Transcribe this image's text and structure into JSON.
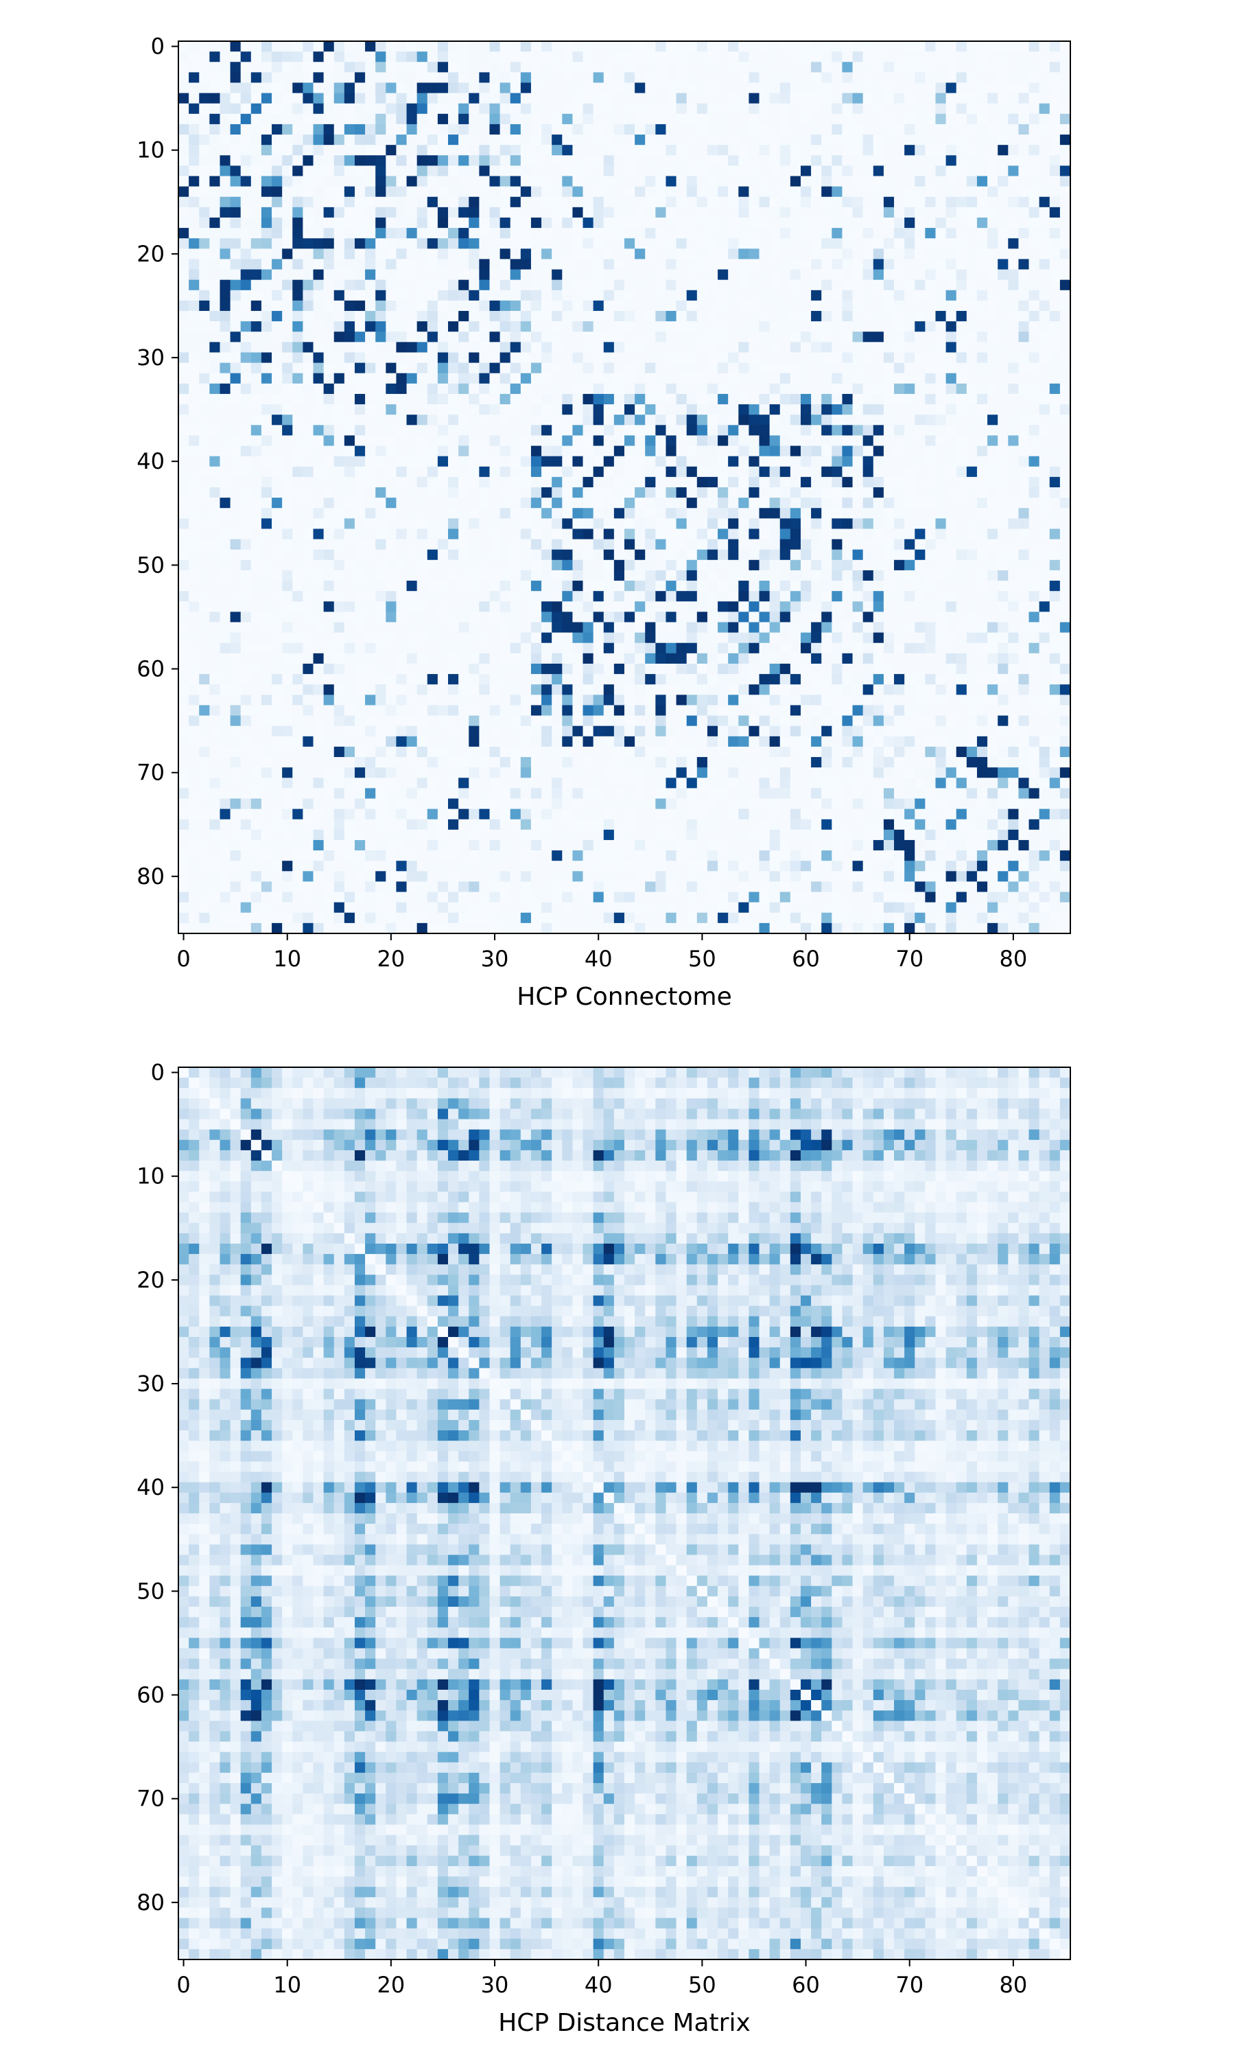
{
  "chart_data": [
    {
      "type": "heatmap",
      "xlabel": "HCP Connectome",
      "ylabel": "",
      "colormap": "Blues",
      "size": 86,
      "xlim": [
        -0.5,
        85.5
      ],
      "ylim": [
        85.5,
        -0.5
      ],
      "xticks": [
        0,
        10,
        20,
        30,
        40,
        50,
        60,
        70,
        80
      ],
      "yticks": [
        0,
        10,
        20,
        30,
        40,
        50,
        60,
        70,
        80
      ],
      "grid": false,
      "pattern": "block-structured binary connectivity",
      "blocks": [
        {
          "rows": [
            0,
            33
          ],
          "cols": [
            0,
            33
          ],
          "intensity": "high"
        },
        {
          "rows": [
            34,
            67
          ],
          "cols": [
            34,
            67
          ],
          "intensity": "high"
        },
        {
          "rows": [
            68,
            85
          ],
          "cols": [
            68,
            85
          ],
          "intensity": "high"
        }
      ]
    },
    {
      "type": "heatmap",
      "xlabel": "HCP Distance Matrix",
      "ylabel": "",
      "colormap": "Blues",
      "size": 86,
      "xlim": [
        -0.5,
        85.5
      ],
      "ylim": [
        85.5,
        -0.5
      ],
      "xticks": [
        0,
        10,
        20,
        30,
        40,
        50,
        60,
        70,
        80
      ],
      "yticks": [
        0,
        10,
        20,
        30,
        40,
        50,
        60,
        70,
        80
      ],
      "grid": false,
      "pattern": "dense distance values with strong row/column bands",
      "strong_indices": [
        6,
        7,
        8,
        17,
        18,
        25,
        26,
        27,
        28,
        40,
        41,
        55,
        59,
        60,
        61,
        62
      ]
    }
  ]
}
